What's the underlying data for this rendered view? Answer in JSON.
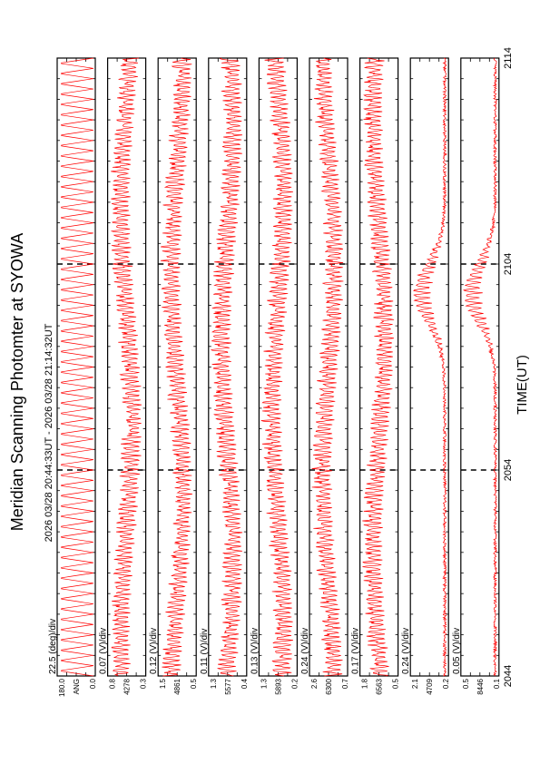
{
  "title": "Meridian Scanning Photomter at SYOWA",
  "time_range": "2026 03/28 20:44:33UT - 2026 03/28 21:14:32UT",
  "xlabel": "TIME(UT)",
  "chart_data": {
    "type": "line",
    "x_ticks": [
      "2044",
      "2054",
      "2104",
      "2114"
    ],
    "x_range_minutes": [
      0,
      30
    ],
    "series_color": "#ff0000",
    "panels": [
      {
        "name": "ANG",
        "scale": "22.5 (deg)/div",
        "ymin_label": "0.0",
        "ymax_label": "180.0",
        "ylim": [
          0,
          180
        ],
        "pattern": "angle"
      },
      {
        "name": "4278",
        "scale": "0.07 (V)/div",
        "ymin_label": "0.3",
        "ymax_label": "0.8",
        "ylim": [
          0.3,
          0.8
        ],
        "pattern": "noise"
      },
      {
        "name": "4861",
        "scale": "0.12 (V)/div",
        "ymin_label": "0.5",
        "ymax_label": "1.5",
        "ylim": [
          0.5,
          1.5
        ],
        "pattern": "noise"
      },
      {
        "name": "5577",
        "scale": "0.11 (V)/div",
        "ymin_label": "0.4",
        "ymax_label": "1.3",
        "ylim": [
          0.4,
          1.3
        ],
        "pattern": "noise"
      },
      {
        "name": "5893",
        "scale": "0.13 (V)/div",
        "ymin_label": "0.2",
        "ymax_label": "1.3",
        "ylim": [
          0.2,
          1.3
        ],
        "pattern": "noise"
      },
      {
        "name": "6300",
        "scale": "0.24 (V)/div",
        "ymin_label": "0.7",
        "ymax_label": "2.6",
        "ylim": [
          0.7,
          2.6
        ],
        "pattern": "noise"
      },
      {
        "name": "6563",
        "scale": "0.17 (V)/div",
        "ymin_label": "0.5",
        "ymax_label": "1.8",
        "ylim": [
          0.5,
          1.8
        ],
        "pattern": "noise"
      },
      {
        "name": "4709",
        "scale": "0.24 (V)/div",
        "ymin_label": "0.2",
        "ymax_label": "2.1",
        "ylim": [
          0.2,
          2.1
        ],
        "pattern": "burst"
      },
      {
        "name": "8446",
        "scale": "0.05 (V)/div",
        "ymin_label": "0.1",
        "ymax_label": "0.5",
        "ylim": [
          0.1,
          0.5
        ],
        "pattern": "burst"
      }
    ]
  }
}
